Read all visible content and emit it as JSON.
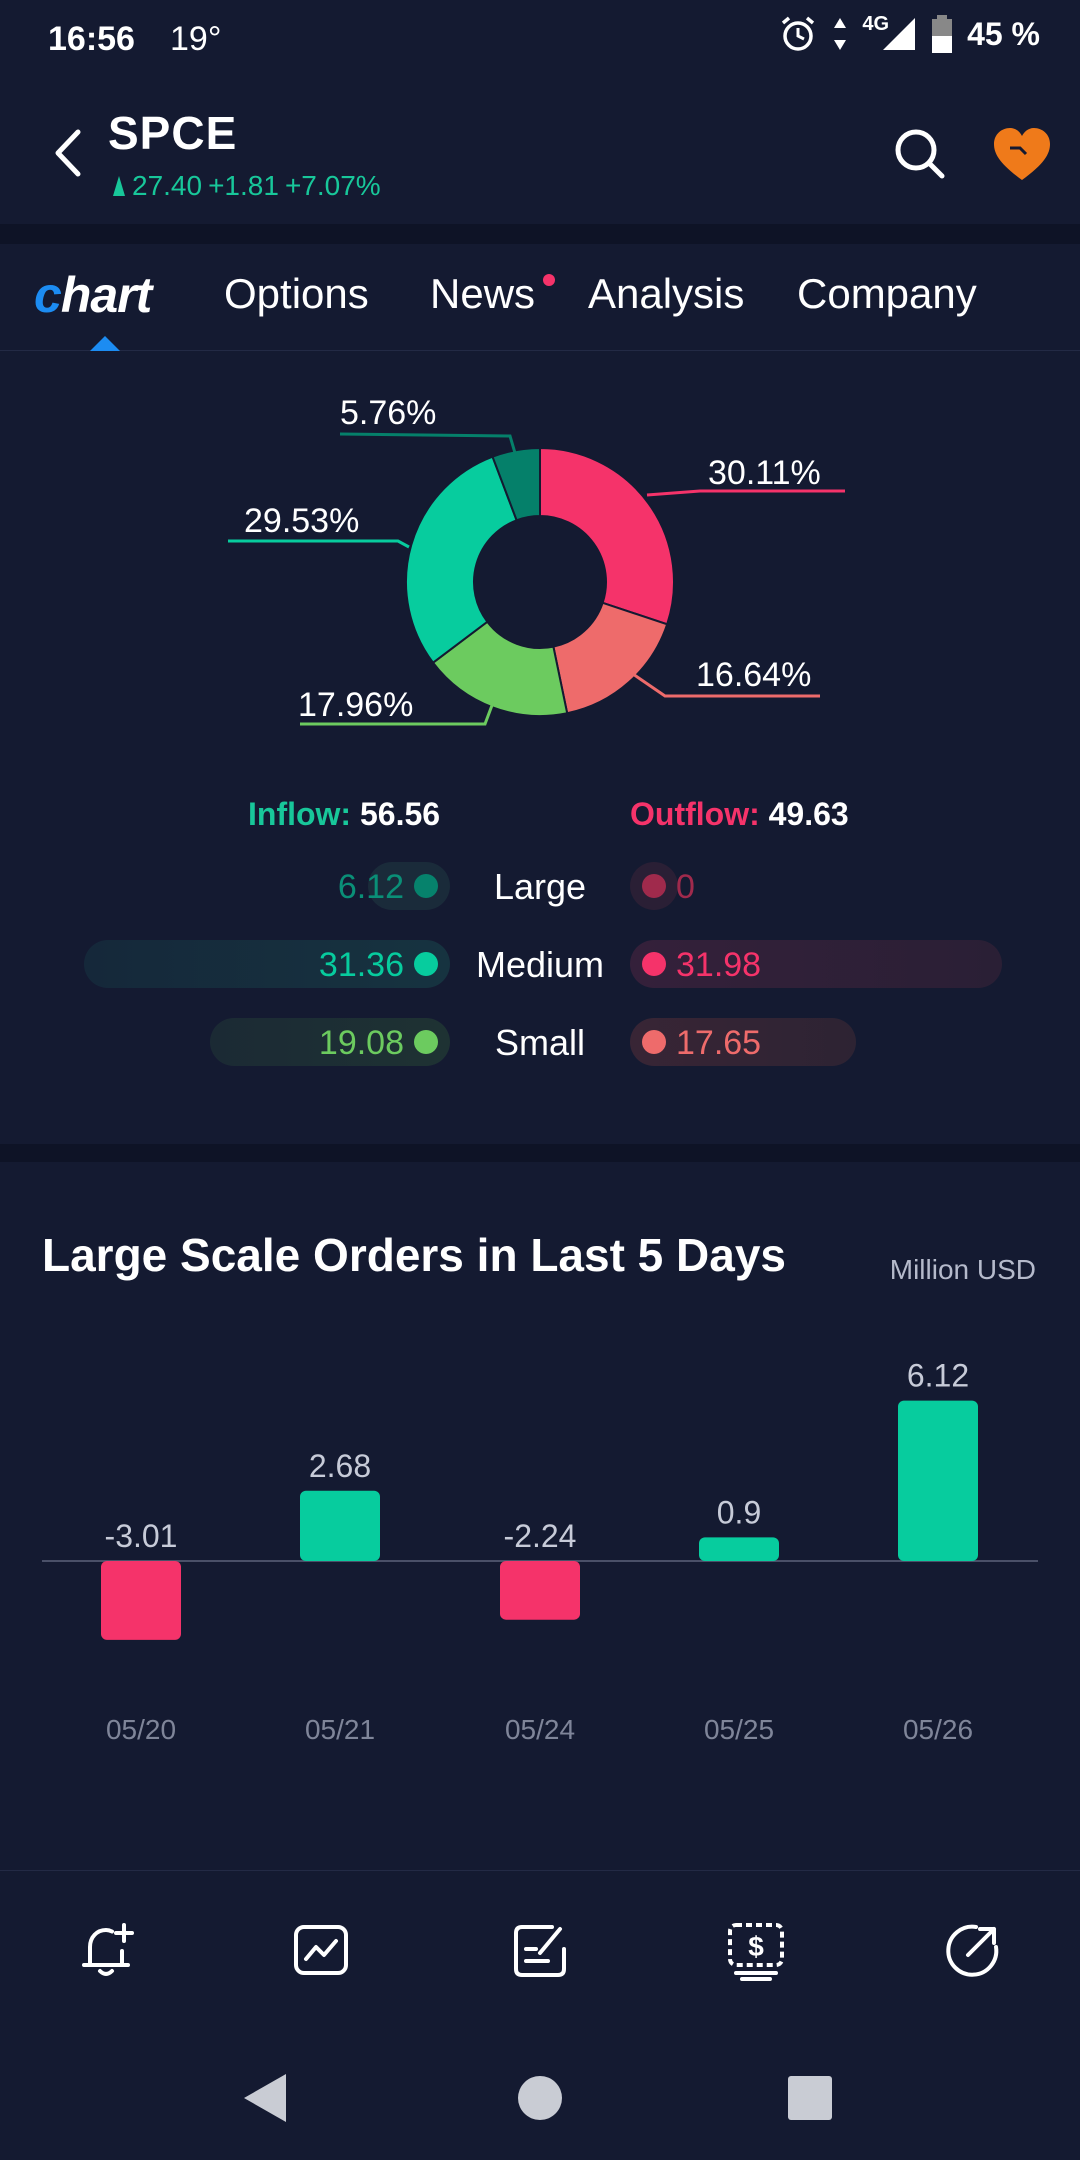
{
  "status_bar": {
    "time": "16:56",
    "temperature": "19°",
    "network": "4G",
    "battery": "45 %"
  },
  "header": {
    "ticker": "SPCE",
    "price": "27.40",
    "change": "+1.81",
    "change_pct": "+7.07%"
  },
  "tabs": [
    {
      "label": "Options"
    },
    {
      "label": "News"
    },
    {
      "label": "Analysis"
    },
    {
      "label": "Company"
    }
  ],
  "tab_chart_label": {
    "first": "c",
    "rest": "hart"
  },
  "donut": {
    "labels": [
      "30.11%",
      "16.64%",
      "17.96%",
      "29.53%",
      "5.76%"
    ],
    "colors": [
      "#f5336a",
      "#ee6b6b",
      "#6ccb5f",
      "#07cc9e",
      "#05806a"
    ]
  },
  "flow": {
    "inflow_label": "Inflow:",
    "inflow_value": "56.56",
    "outflow_label": "Outflow:",
    "outflow_value": "49.63",
    "rows": [
      {
        "label": "Large",
        "inflow": "6.12",
        "outflow": "0"
      },
      {
        "label": "Medium",
        "inflow": "31.36",
        "outflow": "31.98"
      },
      {
        "label": "Small",
        "inflow": "19.08",
        "outflow": "17.65"
      }
    ]
  },
  "bar_section": {
    "title": "Large Scale Orders in Last 5 Days",
    "unit": "Million USD"
  },
  "chart_data": {
    "type": "bar",
    "categories": [
      "05/20",
      "05/21",
      "05/24",
      "05/25",
      "05/26"
    ],
    "values": [
      -3.01,
      2.68,
      -2.24,
      0.9,
      6.12
    ],
    "labels": [
      "-3.01",
      "2.68",
      "-2.24",
      "0.9",
      "6.12"
    ],
    "title": "Large Scale Orders in Last 5 Days",
    "ylabel": "Million USD",
    "positive_color": "#07cc9e",
    "negative_color": "#f5336a"
  },
  "toolbar_icons": [
    "bell-plus-icon",
    "chart-trend-icon",
    "edit-note-icon",
    "dollar-order-icon",
    "share-icon"
  ]
}
